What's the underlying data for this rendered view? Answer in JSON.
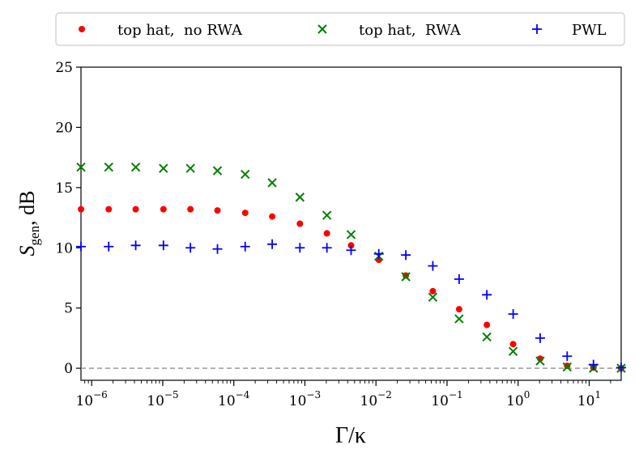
{
  "chart_data": {
    "type": "scatter",
    "title": "",
    "xlabel": "Γ/κ",
    "ylabel_main": "S",
    "ylabel_sub": "gen",
    "ylabel_unit": ", dB",
    "xscale": "log",
    "xlim_log10": [
      -6.15,
      1.45
    ],
    "ylim": [
      -1,
      25
    ],
    "yticks": [
      0,
      5,
      10,
      15,
      20,
      25
    ],
    "ytick_labels": [
      "0",
      "5",
      "10",
      "15",
      "20",
      "25"
    ],
    "xtick_exponents": [
      -6,
      -5,
      -4,
      -3,
      -2,
      -1,
      0,
      1
    ],
    "xtick_base": "10",
    "xtick_exponent_labels": [
      "−6",
      "−5",
      "−4",
      "−3",
      "−2",
      "−1",
      "0",
      "1"
    ],
    "reference_line": {
      "y": 0,
      "style": "dashed",
      "color": "#999999"
    },
    "legend": {
      "placement": "top",
      "columns": 3
    },
    "x_log10": [
      -6.15,
      -5.76,
      -5.38,
      -4.99,
      -4.61,
      -4.23,
      -3.84,
      -3.46,
      -3.07,
      -2.69,
      -2.35,
      -1.96,
      -1.58,
      -1.2,
      -0.83,
      -0.44,
      -0.07,
      0.31,
      0.69,
      1.06,
      1.45
    ],
    "series": [
      {
        "name": "top hat,  no RWA",
        "marker": "dot",
        "color": "#ff0000",
        "values": [
          13.2,
          13.2,
          13.2,
          13.2,
          13.2,
          13.1,
          12.9,
          12.6,
          12.0,
          11.2,
          10.2,
          9.0,
          7.7,
          6.4,
          4.9,
          3.6,
          2.0,
          0.8,
          0.2,
          0.05,
          0.0
        ]
      },
      {
        "name": "top hat,  RWA",
        "marker": "x",
        "color": "#008000",
        "values": [
          16.7,
          16.7,
          16.7,
          16.6,
          16.6,
          16.4,
          16.1,
          15.4,
          14.2,
          12.7,
          11.1,
          9.3,
          7.6,
          5.9,
          4.1,
          2.6,
          1.4,
          0.6,
          0.1,
          0.0,
          0.0
        ]
      },
      {
        "name": "PWL",
        "marker": "plus",
        "color": "#0000ff",
        "values": [
          10.1,
          10.1,
          10.2,
          10.2,
          10.0,
          9.9,
          10.1,
          10.3,
          10.0,
          10.0,
          9.8,
          9.5,
          9.4,
          8.5,
          7.4,
          6.1,
          4.5,
          2.5,
          1.0,
          0.3,
          0.05
        ]
      }
    ]
  }
}
